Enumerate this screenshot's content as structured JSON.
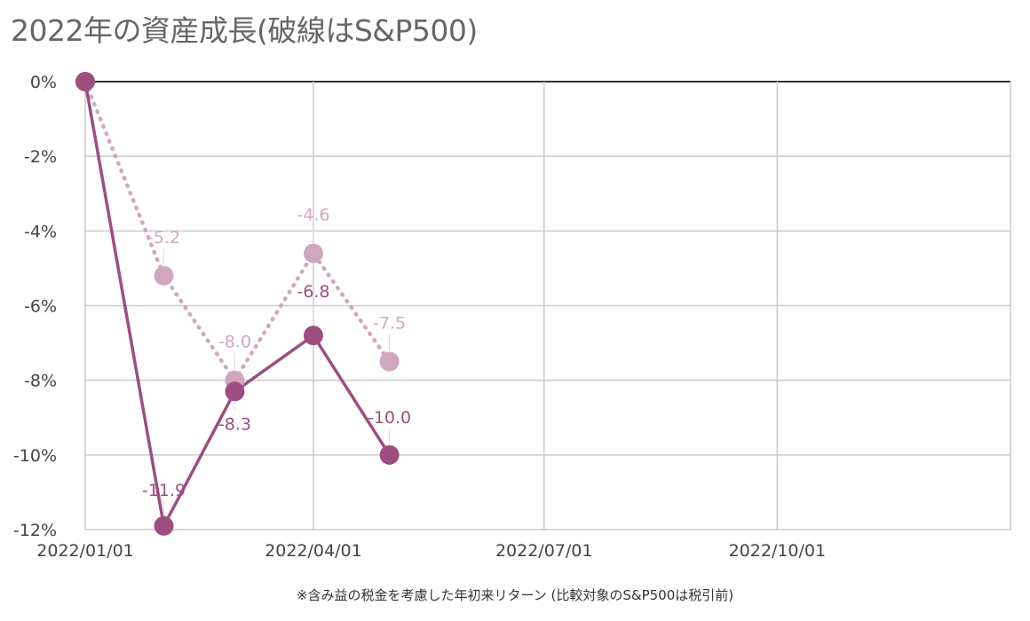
{
  "chart_data": {
    "type": "line",
    "title": "2022年の資産成長(破線はS&P500)",
    "footnote": "※含み益の税金を考慮した年初来リターン (比較対象のS&P500は税引前)",
    "y_ticks": [
      "0%",
      "-2%",
      "-4%",
      "-6%",
      "-8%",
      "-10%",
      "-12%"
    ],
    "ylim": [
      -12,
      0
    ],
    "x_ticks": [
      "2022/01/01",
      "2022/04/01",
      "2022/07/01",
      "2022/10/01"
    ],
    "x_tick_dates": [
      "2022-01-01",
      "2022-04-01",
      "2022-07-01",
      "2022-10-01"
    ],
    "xlim": [
      "2022-01-01",
      "2023-01-01"
    ],
    "grid": true,
    "series": [
      {
        "style": "solid",
        "color": "#9c4f7e",
        "x": [
          "2022-01-01",
          "2022-02-01",
          "2022-03-01",
          "2022-04-01",
          "2022-05-01"
        ],
        "y": [
          0,
          -11.9,
          -8.3,
          -6.8,
          -10.0
        ],
        "labels": [
          "",
          "-11.9",
          "-8.3",
          "-6.8",
          "-10.0"
        ]
      },
      {
        "style": "dotted",
        "color": "#d1a7c0",
        "x": [
          "2022-01-01",
          "2022-02-01",
          "2022-03-01",
          "2022-04-01",
          "2022-05-01"
        ],
        "y": [
          0,
          -5.2,
          -8.0,
          -4.6,
          -7.5
        ],
        "labels": [
          "",
          "-5.2",
          "-8.0",
          "-4.6",
          "-7.5"
        ]
      }
    ]
  }
}
